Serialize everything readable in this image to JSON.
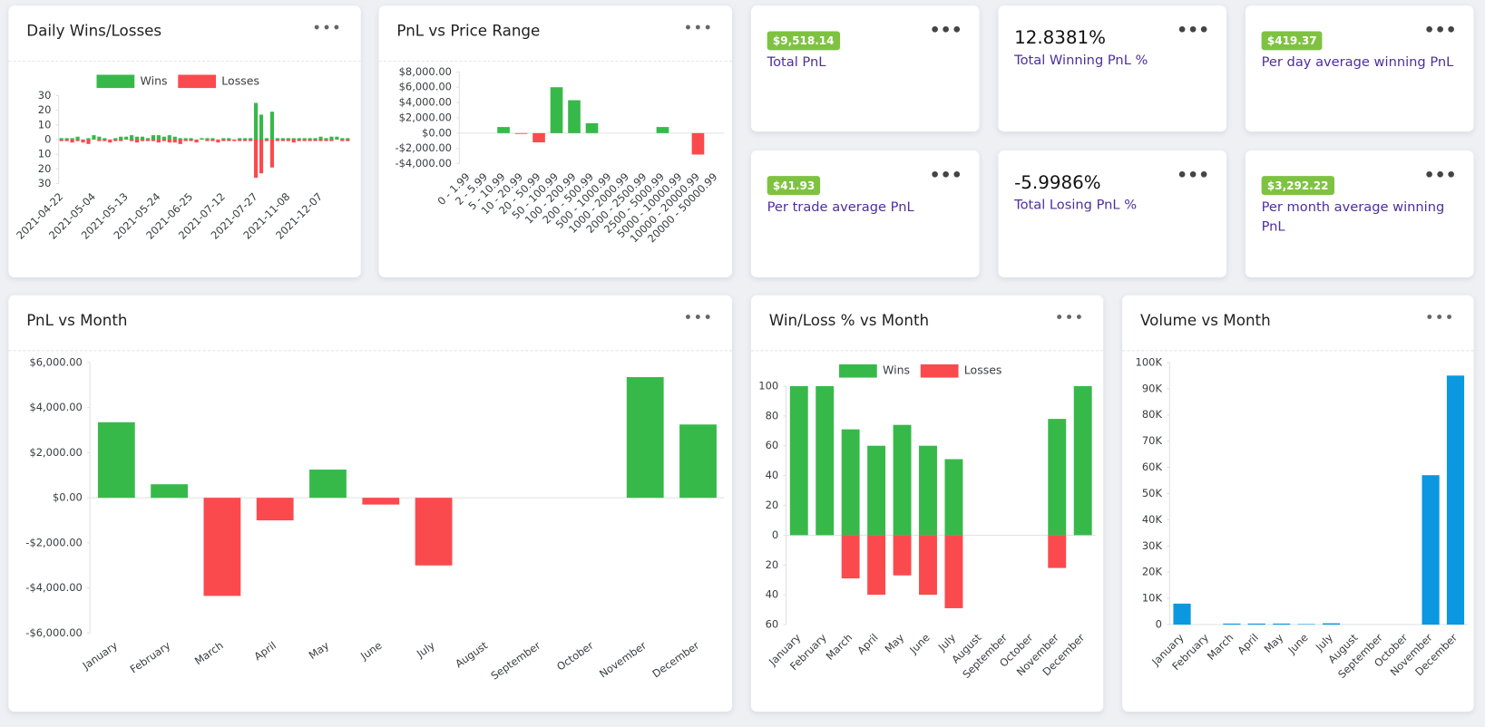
{
  "chart_data": [
    {
      "type": "bar",
      "title": "Daily Wins/Losses",
      "legend": true,
      "categories": [
        "2021-04-22",
        null,
        null,
        null,
        null,
        null,
        "2021-05-04",
        null,
        null,
        null,
        null,
        null,
        "2021-05-13",
        null,
        null,
        null,
        null,
        null,
        "2021-05-24",
        null,
        null,
        null,
        null,
        null,
        "2021-06-25",
        null,
        null,
        null,
        null,
        null,
        "2021-07-12",
        null,
        null,
        null,
        null,
        null,
        "2021-07-27",
        null,
        null,
        null,
        null,
        null,
        "2021-11-08",
        null,
        null,
        null,
        null,
        null,
        "2021-12-07",
        null,
        null,
        null,
        null,
        null
      ],
      "series": [
        {
          "name": "Wins",
          "color": "#37b94a",
          "values": [
            1,
            1,
            1,
            2,
            0,
            1,
            3,
            2,
            1,
            0,
            1,
            2,
            2,
            3,
            2,
            2,
            1,
            3,
            3,
            2,
            3,
            2,
            1,
            1,
            1,
            0,
            1,
            1,
            1,
            0,
            1,
            1,
            0,
            1,
            1,
            1,
            25,
            17,
            1,
            19,
            1,
            1,
            1,
            1,
            1,
            1,
            1,
            1,
            2,
            1,
            2,
            2,
            1,
            1
          ]
        },
        {
          "name": "Losses",
          "color": "#fb4a4d",
          "values": [
            -1,
            -1,
            -2,
            -1,
            -2,
            -3,
            0,
            -1,
            -1,
            -2,
            -1,
            -1,
            0,
            -1,
            -2,
            -1,
            -1,
            -1,
            -2,
            -1,
            -2,
            -2,
            -3,
            -1,
            -1,
            -2,
            0,
            -1,
            -1,
            -2,
            -1,
            -1,
            -1,
            -1,
            -1,
            -1,
            -26,
            -23,
            -1,
            -19,
            -1,
            -1,
            -1,
            -2,
            -1,
            -1,
            -1,
            -1,
            -1,
            -1,
            -1,
            0,
            -1,
            -1
          ]
        }
      ],
      "ylim": [
        -30,
        30
      ],
      "yticks": [
        30,
        20,
        10,
        0,
        {
          "value": -10,
          "label": "10"
        },
        {
          "value": -20,
          "label": "20"
        },
        {
          "value": -30,
          "label": "30"
        }
      ],
      "grid": false
    },
    {
      "type": "bar",
      "title": "PnL vs Price Range",
      "categories": [
        "0 - 1.99",
        "2 - 5.99",
        "5 - 10.99",
        "10 - 20.99",
        "20 - 50.99",
        "50 - 100.99",
        "100 - 200.99",
        "200 - 500.99",
        "500 - 1000.99",
        "1000 - 2000.99",
        "2000 - 2500.99",
        "2500 - 5000.99",
        "5000 - 10000.99",
        "10000 - 20000.99",
        "20000 - 50000.99"
      ],
      "values": [
        null,
        null,
        800,
        -100,
        -1200,
        6000,
        4300,
        1300,
        null,
        null,
        null,
        800,
        null,
        -2800,
        null
      ],
      "color": "#37b94a",
      "negative_color": "#fb4a4d",
      "ylim": [
        -4000,
        8000
      ],
      "yticks": [
        {
          "value": 8000,
          "label": "$8,000.00"
        },
        {
          "value": 6000,
          "label": "$6,000.00"
        },
        {
          "value": 4000,
          "label": "$4,000.00"
        },
        {
          "value": 2000,
          "label": "$2,000.00"
        },
        {
          "value": 0,
          "label": "$0.00"
        },
        {
          "value": -2000,
          "label": "-$2,000.00"
        },
        {
          "value": -4000,
          "label": "-$4,000.00"
        }
      ],
      "grid": false
    },
    {
      "type": "bar",
      "title": "PnL vs Month",
      "categories": [
        "January",
        "February",
        "March",
        "April",
        "May",
        "June",
        "July",
        "August",
        "September",
        "October",
        "November",
        "December"
      ],
      "values": [
        3350,
        600,
        -4350,
        -1000,
        1250,
        -300,
        -3000,
        null,
        null,
        null,
        5350,
        3250
      ],
      "color": "#37b94a",
      "negative_color": "#fb4a4d",
      "ylim": [
        -6000,
        6000
      ],
      "yticks": [
        {
          "value": 6000,
          "label": "$6,000.00"
        },
        {
          "value": 4000,
          "label": "$4,000.00"
        },
        {
          "value": 2000,
          "label": "$2,000.00"
        },
        {
          "value": 0,
          "label": "$0.00"
        },
        {
          "value": -2000,
          "label": "-$2,000.00"
        },
        {
          "value": -4000,
          "label": "-$4,000.00"
        },
        {
          "value": -6000,
          "label": "-$6,000.00"
        }
      ],
      "grid": false
    },
    {
      "type": "bar",
      "title": "Win/Loss % vs Month",
      "legend": true,
      "categories": [
        "January",
        "February",
        "March",
        "April",
        "May",
        "June",
        "July",
        "August",
        "September",
        "October",
        "November",
        "December"
      ],
      "series": [
        {
          "name": "Wins",
          "color": "#37b94a",
          "values": [
            100,
            100,
            71,
            60,
            74,
            60,
            51,
            null,
            null,
            null,
            78,
            100
          ]
        },
        {
          "name": "Losses",
          "color": "#fb4a4d",
          "values": [
            null,
            null,
            -29,
            -40,
            -27,
            -40,
            -49,
            null,
            null,
            null,
            -22,
            null
          ]
        }
      ],
      "ylim": [
        -60,
        100
      ],
      "yticks": [
        100,
        80,
        60,
        40,
        20,
        0,
        {
          "value": -20,
          "label": "20"
        },
        {
          "value": -40,
          "label": "40"
        },
        {
          "value": -60,
          "label": "60"
        }
      ],
      "grid": false
    },
    {
      "type": "bar",
      "title": "Volume vs Month",
      "categories": [
        "January",
        "February",
        "March",
        "April",
        "May",
        "June",
        "July",
        "August",
        "September",
        "October",
        "November",
        "December"
      ],
      "values": [
        8000,
        0,
        400,
        400,
        400,
        200,
        500,
        0,
        0,
        0,
        57000,
        95000
      ],
      "color": "#0b98e0",
      "ylim": [
        0,
        100000
      ],
      "yticks": [
        {
          "value": 100000,
          "label": "100K"
        },
        {
          "value": 90000,
          "label": "90K"
        },
        {
          "value": 80000,
          "label": "80K"
        },
        {
          "value": 70000,
          "label": "70K"
        },
        {
          "value": 60000,
          "label": "60K"
        },
        {
          "value": 50000,
          "label": "50K"
        },
        {
          "value": 40000,
          "label": "40K"
        },
        {
          "value": 30000,
          "label": "30K"
        },
        {
          "value": 20000,
          "label": "20K"
        },
        {
          "value": 10000,
          "label": "10K"
        },
        0
      ],
      "grid": false
    }
  ],
  "cards": [
    {
      "badge": "$9,518.14",
      "label": "Total PnL"
    },
    {
      "value": "12.8381%",
      "label": "Total Winning PnL %"
    },
    {
      "badge": "$419.37",
      "label": "Per day average winning PnL"
    },
    {
      "badge": "$41.93",
      "label": "Per trade average PnL"
    },
    {
      "value": "-5.9986%",
      "label": "Total Losing PnL %"
    },
    {
      "badge": "$3,292.22",
      "label": "Per month average winning PnL"
    }
  ]
}
